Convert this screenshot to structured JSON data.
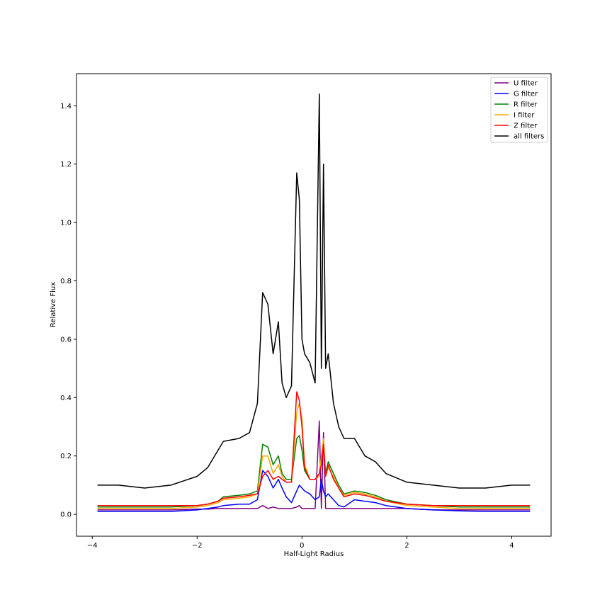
{
  "chart_data": {
    "type": "line",
    "title": "",
    "xlabel": "Half-Light Radius",
    "ylabel": "Relative Flux",
    "xlim": [
      -4.3,
      4.75
    ],
    "ylim": [
      -0.075,
      1.51
    ],
    "xticks": [
      -4,
      -2,
      0,
      2,
      4
    ],
    "xtick_labels": [
      "−4",
      "−2",
      "0",
      "2",
      "4"
    ],
    "yticks": [
      0.0,
      0.2,
      0.4,
      0.6,
      0.8,
      1.0,
      1.2,
      1.4
    ],
    "ytick_labels": [
      "0.0",
      "0.2",
      "0.4",
      "0.6",
      "0.8",
      "1.0",
      "1.2",
      "1.4"
    ],
    "grid": false,
    "legend_position": "top-right",
    "x": [
      -3.9,
      -3.5,
      -3.0,
      -2.5,
      -2.0,
      -1.8,
      -1.6,
      -1.5,
      -1.2,
      -1.0,
      -0.85,
      -0.75,
      -0.65,
      -0.55,
      -0.45,
      -0.38,
      -0.3,
      -0.2,
      -0.1,
      -0.05,
      0.0,
      0.05,
      0.15,
      0.25,
      0.33,
      0.37,
      0.41,
      0.45,
      0.5,
      0.6,
      0.7,
      0.8,
      1.0,
      1.2,
      1.4,
      1.6,
      2.0,
      2.5,
      3.0,
      3.5,
      4.0,
      4.35
    ],
    "series": [
      {
        "name": "U filter",
        "color": "#800080",
        "values": [
          0.015,
          0.015,
          0.015,
          0.015,
          0.018,
          0.018,
          0.02,
          0.02,
          0.02,
          0.02,
          0.02,
          0.03,
          0.02,
          0.025,
          0.02,
          0.02,
          0.02,
          0.02,
          0.025,
          0.03,
          0.02,
          0.02,
          0.02,
          0.02,
          0.32,
          0.02,
          0.28,
          0.02,
          0.02,
          0.02,
          0.02,
          0.02,
          0.02,
          0.02,
          0.02,
          0.02,
          0.02,
          0.015,
          0.015,
          0.015,
          0.015,
          0.015
        ]
      },
      {
        "name": "G filter",
        "color": "#0000ff",
        "values": [
          0.01,
          0.01,
          0.01,
          0.01,
          0.015,
          0.02,
          0.025,
          0.03,
          0.035,
          0.035,
          0.05,
          0.15,
          0.13,
          0.09,
          0.12,
          0.09,
          0.06,
          0.04,
          0.08,
          0.1,
          0.09,
          0.08,
          0.07,
          0.05,
          0.06,
          0.12,
          0.08,
          0.06,
          0.07,
          0.05,
          0.03,
          0.025,
          0.05,
          0.045,
          0.04,
          0.03,
          0.02,
          0.015,
          0.012,
          0.01,
          0.01,
          0.01
        ]
      },
      {
        "name": "R filter",
        "color": "#008000",
        "values": [
          0.025,
          0.025,
          0.025,
          0.025,
          0.03,
          0.035,
          0.045,
          0.06,
          0.065,
          0.07,
          0.08,
          0.24,
          0.23,
          0.17,
          0.2,
          0.14,
          0.12,
          0.12,
          0.26,
          0.27,
          0.22,
          0.15,
          0.12,
          0.12,
          0.14,
          0.2,
          0.25,
          0.14,
          0.18,
          0.14,
          0.1,
          0.07,
          0.08,
          0.075,
          0.065,
          0.05,
          0.035,
          0.03,
          0.025,
          0.025,
          0.025,
          0.025
        ]
      },
      {
        "name": "I filter",
        "color": "#ffa500",
        "values": [
          0.02,
          0.02,
          0.02,
          0.02,
          0.025,
          0.03,
          0.04,
          0.05,
          0.055,
          0.06,
          0.07,
          0.2,
          0.2,
          0.14,
          0.17,
          0.13,
          0.11,
          0.11,
          0.35,
          0.38,
          0.33,
          0.17,
          0.12,
          0.12,
          0.13,
          0.2,
          0.26,
          0.13,
          0.16,
          0.13,
          0.09,
          0.065,
          0.075,
          0.07,
          0.06,
          0.045,
          0.03,
          0.025,
          0.02,
          0.02,
          0.02,
          0.02
        ]
      },
      {
        "name": "Z filter",
        "color": "#ff0000",
        "values": [
          0.03,
          0.03,
          0.03,
          0.03,
          0.03,
          0.035,
          0.045,
          0.055,
          0.06,
          0.065,
          0.07,
          0.13,
          0.15,
          0.12,
          0.13,
          0.12,
          0.11,
          0.11,
          0.42,
          0.39,
          0.3,
          0.16,
          0.12,
          0.12,
          0.14,
          0.17,
          0.24,
          0.13,
          0.17,
          0.12,
          0.09,
          0.06,
          0.07,
          0.065,
          0.055,
          0.045,
          0.035,
          0.03,
          0.03,
          0.03,
          0.03,
          0.03
        ]
      },
      {
        "name": "all filters",
        "color": "#000000",
        "values": [
          0.1,
          0.1,
          0.09,
          0.1,
          0.13,
          0.16,
          0.22,
          0.25,
          0.26,
          0.28,
          0.38,
          0.76,
          0.72,
          0.55,
          0.66,
          0.45,
          0.4,
          0.44,
          1.17,
          1.08,
          0.6,
          0.55,
          0.52,
          0.45,
          1.44,
          0.5,
          1.2,
          0.5,
          0.55,
          0.38,
          0.3,
          0.26,
          0.26,
          0.2,
          0.18,
          0.14,
          0.11,
          0.1,
          0.09,
          0.09,
          0.1,
          0.1
        ]
      }
    ]
  }
}
